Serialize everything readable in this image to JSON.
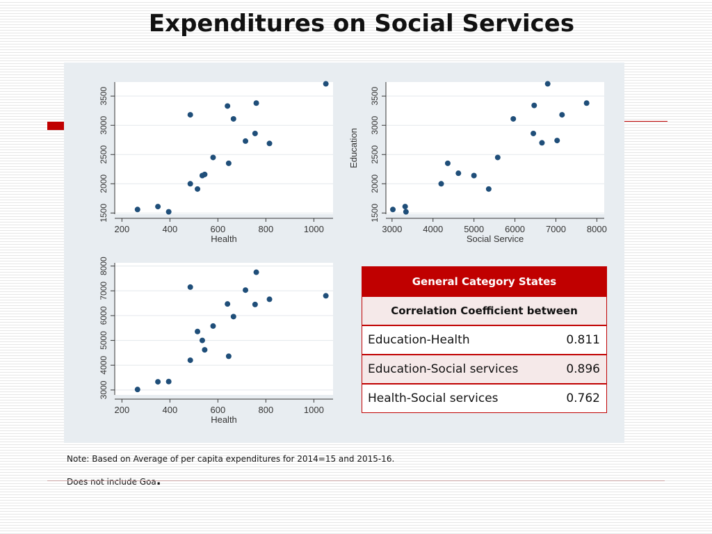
{
  "slide": {
    "title": "Expenditures on Social Services",
    "note_line1": "Note: Based on Average of per capita expenditures for 2014=15 and 2015-16.",
    "note_line2": "Does not include Goa",
    "note_line2_dot": "."
  },
  "colors": {
    "accent": "#c00000",
    "point": "#1f4e79",
    "panel": "#e8edf1"
  },
  "table": {
    "header": "General Category States",
    "subheader": "Correlation Coefficient between",
    "rows": [
      {
        "label": "Education-Health",
        "value": "0.811"
      },
      {
        "label": "Education-Social services",
        "value": "0.896"
      },
      {
        "label": "Health-Social services",
        "value": "0.762"
      }
    ]
  },
  "chart_data": [
    {
      "type": "scatter",
      "title": "",
      "xlabel": "Health",
      "ylabel": "",
      "xlim": [
        170,
        1080
      ],
      "ylim": [
        1480,
        3740
      ],
      "xticks": [
        200,
        400,
        600,
        800,
        1000
      ],
      "yticks": [
        1500,
        2000,
        2500,
        3000,
        3500
      ],
      "grid": true,
      "points": [
        [
          265,
          1560
        ],
        [
          350,
          1610
        ],
        [
          395,
          1520
        ],
        [
          485,
          2000
        ],
        [
          485,
          3180
        ],
        [
          515,
          1910
        ],
        [
          535,
          2140
        ],
        [
          545,
          2160
        ],
        [
          580,
          2450
        ],
        [
          640,
          3330
        ],
        [
          645,
          2350
        ],
        [
          665,
          3110
        ],
        [
          715,
          2730
        ],
        [
          755,
          2860
        ],
        [
          760,
          3380
        ],
        [
          815,
          2690
        ],
        [
          1050,
          3710
        ]
      ]
    },
    {
      "type": "scatter",
      "title": "",
      "xlabel": "Social Service",
      "ylabel": "Education",
      "xlim": [
        2850,
        8180
      ],
      "ylim": [
        1480,
        3740
      ],
      "xticks": [
        3000,
        4000,
        5000,
        6000,
        7000,
        8000
      ],
      "yticks": [
        1500,
        2000,
        2500,
        3000,
        3500
      ],
      "grid": true,
      "points": [
        [
          3020,
          1560
        ],
        [
          3320,
          1610
        ],
        [
          3340,
          1520
        ],
        [
          4200,
          2000
        ],
        [
          4360,
          2350
        ],
        [
          4620,
          2180
        ],
        [
          5000,
          2140
        ],
        [
          5360,
          1910
        ],
        [
          5580,
          2450
        ],
        [
          5960,
          3110
        ],
        [
          6450,
          2860
        ],
        [
          6470,
          3340
        ],
        [
          6660,
          2700
        ],
        [
          6800,
          3710
        ],
        [
          7030,
          2740
        ],
        [
          7150,
          3180
        ],
        [
          7750,
          3380
        ]
      ]
    },
    {
      "type": "scatter",
      "title": "",
      "xlabel": "Health",
      "ylabel": "",
      "xlim": [
        170,
        1080
      ],
      "ylim": [
        2800,
        8130
      ],
      "xticks": [
        200,
        400,
        600,
        800,
        1000
      ],
      "yticks": [
        3000,
        4000,
        5000,
        6000,
        7000,
        8000
      ],
      "grid": true,
      "points": [
        [
          265,
          3020
        ],
        [
          350,
          3330
        ],
        [
          395,
          3340
        ],
        [
          485,
          4200
        ],
        [
          485,
          7150
        ],
        [
          515,
          5360
        ],
        [
          535,
          5000
        ],
        [
          545,
          4620
        ],
        [
          580,
          5580
        ],
        [
          640,
          6470
        ],
        [
          645,
          4360
        ],
        [
          665,
          5960
        ],
        [
          715,
          7030
        ],
        [
          755,
          6450
        ],
        [
          760,
          7750
        ],
        [
          815,
          6660
        ],
        [
          1050,
          6800
        ]
      ]
    }
  ]
}
